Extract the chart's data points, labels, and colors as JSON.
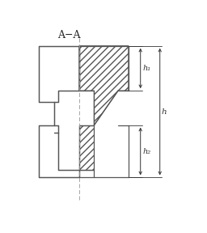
{
  "title": "A−A",
  "background": "#ffffff",
  "line_color": "#555555",
  "hatch_color": "#555555",
  "dim_color": "#333333",
  "centerline_color": "#999999",
  "fig_width": 2.56,
  "fig_height": 2.88,
  "dpi": 100,
  "label_h1": "h₁",
  "label_h2": "h₂",
  "label_h": "h"
}
